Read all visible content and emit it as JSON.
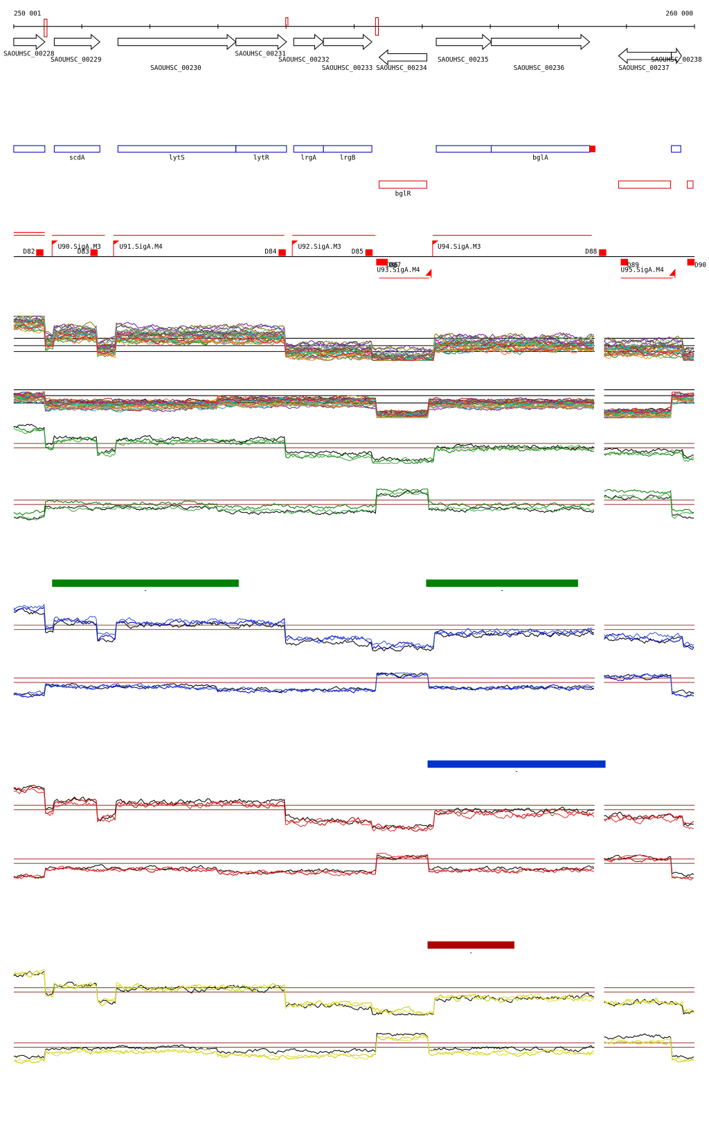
{
  "ruler": {
    "start": "250 001",
    "end": "260 000"
  },
  "locus_tags": [
    "SAOUHSC_00228",
    "SAOUHSC_00229",
    "SAOUHSC_00230",
    "SAOUHSC_00231",
    "SAOUHSC_00232",
    "SAOUHSC_00233",
    "SAOUHSC_00234",
    "SAOUHSC_00235",
    "SAOUHSC_00236",
    "SAOUHSC_00237",
    "SAOUHSC_00238"
  ],
  "gene_names": [
    "scdA",
    "lytS",
    "lytR",
    "lrgA",
    "lrgB",
    "bglA",
    "bglR"
  ],
  "segments": [
    "D82",
    "D83",
    "D84",
    "D85",
    "D86",
    "D87",
    "D88",
    "D89",
    "D90"
  ],
  "promoters": [
    "U90.SigA.M3",
    "U91.SigA.M4",
    "U92.SigA.M3",
    "U93.SigA.M4",
    "U94.SigA.M3",
    "U95.SigA.M4"
  ],
  "condition_bars": [
    {
      "label": "-",
      "color": "#008000"
    },
    {
      "label": "-",
      "color": "#008000"
    },
    {
      "label": "-",
      "color": "#0033cc"
    },
    {
      "label": "-",
      "color": "#b00000"
    }
  ],
  "track_colors": [
    [
      "#000000",
      "#7a1fa2",
      "#d2691e",
      "#228b22",
      "#b22222",
      "#4682b4",
      "#808000",
      "#ff8c00",
      "#2e8b57",
      "#8b4513",
      "#c71585",
      "#20b2aa",
      "#6b8e23",
      "#cd5c5c",
      "#483d8b",
      "#daa520",
      "#32cd32",
      "#a0522d",
      "#9932cc",
      "#ff6347",
      "#556b2f",
      "#b8860b",
      "#00ced1",
      "#8fbc8f",
      "#dc143c"
    ],
    [
      "#000000",
      "#008000",
      "#44aa44"
    ],
    [
      "#000000",
      "#0000c0",
      "#3355dd"
    ],
    [
      "#000000",
      "#c00000",
      "#dd3333"
    ],
    [
      "#000000",
      "#cccc00",
      "#e0e040"
    ]
  ]
}
